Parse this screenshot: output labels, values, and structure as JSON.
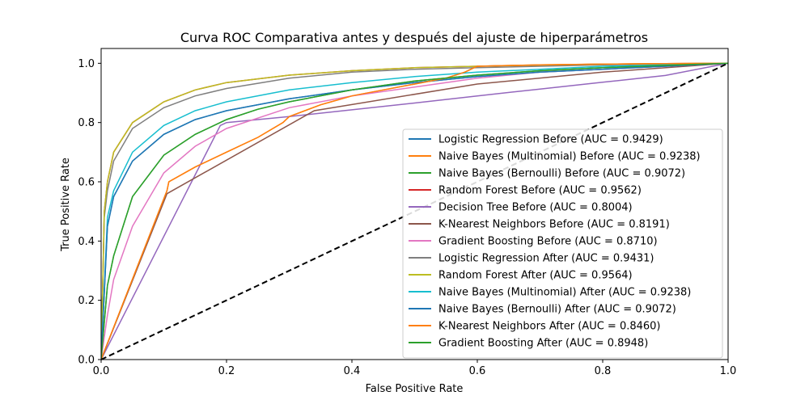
{
  "chart_data": {
    "type": "line",
    "title": "Curva ROC Comparativa antes y después del ajuste de hiperparámetros",
    "xlabel": "False Positive Rate",
    "ylabel": "True Positive Rate",
    "xlim": [
      0.0,
      1.0
    ],
    "ylim": [
      0.0,
      1.05
    ],
    "xticks": [
      "0.0",
      "0.2",
      "0.4",
      "0.6",
      "0.8",
      "1.0"
    ],
    "yticks": [
      "0.0",
      "0.2",
      "0.4",
      "0.6",
      "0.8",
      "1.0"
    ],
    "grid": false,
    "legend_position": "lower-right",
    "reference_line": {
      "x": [
        0,
        1
      ],
      "y": [
        0,
        1
      ],
      "color": "#000000",
      "style": "dashed"
    },
    "series": [
      {
        "name": "Logistic Regression Before (AUC = 0.9429)",
        "color": "#1f77b4",
        "x": [
          0,
          0.01,
          0.02,
          0.05,
          0.1,
          0.15,
          0.2,
          0.3,
          0.4,
          0.5,
          0.6,
          0.7,
          0.8,
          0.9,
          1.0
        ],
        "y": [
          0,
          0.45,
          0.55,
          0.67,
          0.76,
          0.81,
          0.84,
          0.88,
          0.91,
          0.935,
          0.955,
          0.97,
          0.98,
          0.99,
          1.0
        ]
      },
      {
        "name": "Naive Bayes (Multinomial) Before (AUC = 0.9238)",
        "color": "#ff7f0e",
        "x": [
          0,
          0.105,
          0.108,
          0.15,
          0.2,
          0.25,
          0.29,
          0.3,
          0.35,
          0.4,
          0.45,
          0.5,
          0.55,
          0.58,
          0.6,
          0.7,
          0.8,
          0.9,
          1.0
        ],
        "y": [
          0,
          0.57,
          0.6,
          0.65,
          0.7,
          0.75,
          0.8,
          0.82,
          0.86,
          0.89,
          0.91,
          0.93,
          0.95,
          0.97,
          0.99,
          0.995,
          0.997,
          0.999,
          1.0
        ]
      },
      {
        "name": "Naive Bayes (Bernoulli) Before (AUC = 0.9072)",
        "color": "#2ca02c",
        "x": [
          0,
          0.01,
          0.02,
          0.05,
          0.1,
          0.15,
          0.2,
          0.25,
          0.3,
          0.4,
          0.5,
          0.6,
          0.7,
          0.8,
          0.9,
          1.0
        ],
        "y": [
          0,
          0.25,
          0.35,
          0.55,
          0.69,
          0.76,
          0.81,
          0.845,
          0.87,
          0.91,
          0.94,
          0.96,
          0.975,
          0.985,
          0.993,
          1.0
        ]
      },
      {
        "name": "Random Forest Before (AUC = 0.9562)",
        "color": "#d62728",
        "x": [
          0,
          0.005,
          0.01,
          0.02,
          0.05,
          0.1,
          0.15,
          0.2,
          0.3,
          0.4,
          0.5,
          0.6,
          0.7,
          0.8,
          0.9,
          1.0
        ],
        "y": [
          0,
          0.5,
          0.6,
          0.7,
          0.8,
          0.87,
          0.91,
          0.935,
          0.96,
          0.975,
          0.985,
          0.99,
          0.994,
          0.997,
          0.999,
          1.0
        ]
      },
      {
        "name": "Decision Tree Before (AUC = 0.8004)",
        "color": "#9467bd",
        "x": [
          0,
          0.19,
          0.2,
          0.3,
          0.4,
          0.5,
          0.6,
          0.7,
          0.8,
          0.9,
          1.0
        ],
        "y": [
          0,
          0.79,
          0.8,
          0.82,
          0.843,
          0.866,
          0.89,
          0.913,
          0.936,
          0.959,
          1.0
        ]
      },
      {
        "name": "K-Nearest Neighbors Before (AUC = 0.8191)",
        "color": "#8c564b",
        "x": [
          0,
          0.105,
          0.34,
          0.6,
          0.8,
          1.0
        ],
        "y": [
          0,
          0.56,
          0.84,
          0.93,
          0.97,
          1.0
        ]
      },
      {
        "name": "Gradient Boosting Before (AUC = 0.8710)",
        "color": "#e377c2",
        "x": [
          0,
          0.01,
          0.02,
          0.05,
          0.1,
          0.15,
          0.2,
          0.3,
          0.4,
          0.5,
          0.6,
          0.7,
          0.8,
          0.9,
          1.0
        ],
        "y": [
          0,
          0.15,
          0.27,
          0.45,
          0.63,
          0.72,
          0.78,
          0.85,
          0.89,
          0.92,
          0.95,
          0.97,
          0.98,
          0.99,
          1.0
        ]
      },
      {
        "name": "Logistic Regression After (AUC = 0.9431)",
        "color": "#7f7f7f",
        "x": [
          0,
          0.005,
          0.01,
          0.02,
          0.05,
          0.1,
          0.15,
          0.2,
          0.3,
          0.4,
          0.5,
          0.6,
          0.7,
          0.8,
          0.9,
          1.0
        ],
        "y": [
          0,
          0.48,
          0.57,
          0.67,
          0.78,
          0.85,
          0.89,
          0.915,
          0.95,
          0.97,
          0.98,
          0.985,
          0.99,
          0.995,
          0.998,
          1.0
        ]
      },
      {
        "name": "Random Forest After (AUC = 0.9564)",
        "color": "#bcbd22",
        "x": [
          0,
          0.005,
          0.01,
          0.02,
          0.05,
          0.1,
          0.15,
          0.2,
          0.3,
          0.4,
          0.5,
          0.6,
          0.7,
          0.8,
          0.9,
          1.0
        ],
        "y": [
          0,
          0.5,
          0.6,
          0.7,
          0.8,
          0.87,
          0.91,
          0.935,
          0.96,
          0.975,
          0.985,
          0.99,
          0.994,
          0.997,
          0.999,
          1.0
        ]
      },
      {
        "name": "Naive Bayes (Multinomial) After (AUC = 0.9238)",
        "color": "#17becf",
        "x": [
          0,
          0.01,
          0.02,
          0.05,
          0.1,
          0.15,
          0.2,
          0.3,
          0.4,
          0.5,
          0.6,
          0.7,
          0.8,
          0.9,
          1.0
        ],
        "y": [
          0,
          0.48,
          0.57,
          0.7,
          0.79,
          0.84,
          0.87,
          0.91,
          0.935,
          0.955,
          0.97,
          0.98,
          0.99,
          0.995,
          1.0
        ]
      },
      {
        "name": "Naive Bayes (Bernoulli) After (AUC = 0.9072)",
        "color": "#1f77b4",
        "x": [
          0,
          0.01,
          0.02,
          0.05,
          0.1,
          0.15,
          0.2,
          0.3,
          0.4,
          0.5,
          0.6,
          0.7,
          0.8,
          0.9,
          1.0
        ],
        "y": [
          0,
          0.45,
          0.55,
          0.67,
          0.76,
          0.81,
          0.84,
          0.88,
          0.91,
          0.935,
          0.955,
          0.97,
          0.98,
          0.99,
          1.0
        ]
      },
      {
        "name": "K-Nearest Neighbors After (AUC = 0.8460)",
        "color": "#ff7f0e",
        "x": [
          0,
          0.105,
          0.108,
          0.15,
          0.2,
          0.25,
          0.29,
          0.3,
          0.35,
          0.4,
          0.45,
          0.5,
          0.55,
          0.58,
          0.6,
          0.7,
          0.8,
          0.9,
          1.0
        ],
        "y": [
          0,
          0.57,
          0.6,
          0.65,
          0.7,
          0.75,
          0.8,
          0.82,
          0.86,
          0.89,
          0.91,
          0.93,
          0.95,
          0.97,
          0.99,
          0.995,
          0.997,
          0.999,
          1.0
        ]
      },
      {
        "name": "Gradient Boosting After (AUC = 0.8948)",
        "color": "#2ca02c",
        "x": [
          0,
          0.01,
          0.02,
          0.05,
          0.1,
          0.15,
          0.2,
          0.25,
          0.3,
          0.4,
          0.5,
          0.6,
          0.7,
          0.8,
          0.9,
          1.0
        ],
        "y": [
          0,
          0.25,
          0.35,
          0.55,
          0.69,
          0.76,
          0.81,
          0.845,
          0.87,
          0.91,
          0.94,
          0.96,
          0.975,
          0.985,
          0.993,
          1.0
        ]
      }
    ]
  }
}
